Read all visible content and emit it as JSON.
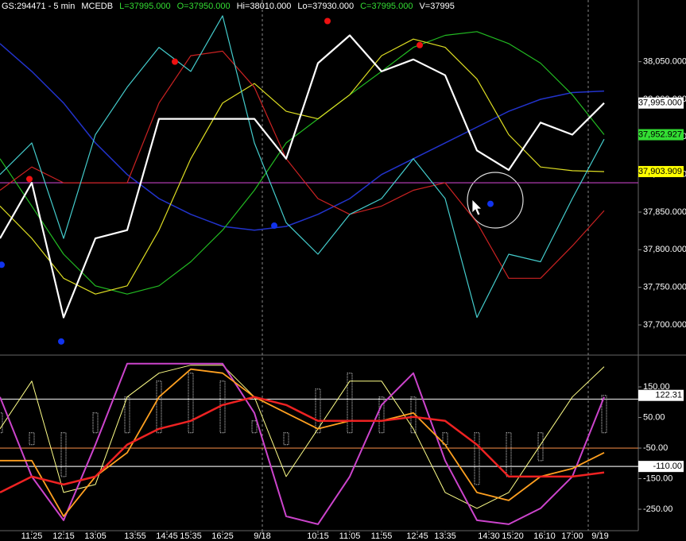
{
  "header": [
    {
      "text": "GS:294471 - 5 min",
      "color": "#ffffff"
    },
    {
      "text": "MCEDB",
      "color": "#ffffff"
    },
    {
      "text": "L=37995.000",
      "color": "#33dd33"
    },
    {
      "text": "O=37950.000",
      "color": "#33dd33"
    },
    {
      "text": "Hi=38010.000",
      "color": "#ffffff"
    },
    {
      "text": "Lo=37930.000",
      "color": "#ffffff"
    },
    {
      "text": "C=37995.000",
      "color": "#33dd33"
    },
    {
      "text": "V=37995",
      "color": "#ffffff"
    }
  ],
  "time_axis": {
    "xlim": [
      0,
      160
    ],
    "x": [
      0,
      8,
      16,
      24,
      32,
      40,
      48,
      56,
      64,
      72,
      80,
      88,
      96,
      104,
      112,
      120,
      128,
      136,
      144,
      152
    ],
    "xticks": [
      {
        "value": 8,
        "label": "11:25"
      },
      {
        "value": 16,
        "label": "12:15"
      },
      {
        "value": 24,
        "label": "13:05"
      },
      {
        "value": 34,
        "label": "13:55"
      },
      {
        "value": 42,
        "label": "14:45"
      },
      {
        "value": 48,
        "label": "15:35"
      },
      {
        "value": 56,
        "label": "16:25"
      },
      {
        "value": 66,
        "label": "9/18"
      },
      {
        "value": 80,
        "label": "10:15"
      },
      {
        "value": 88,
        "label": "11:05"
      },
      {
        "value": 96,
        "label": "11:55"
      },
      {
        "value": 105,
        "label": "12:45"
      },
      {
        "value": 112,
        "label": "13:35"
      },
      {
        "value": 123,
        "label": "14:30"
      },
      {
        "value": 129,
        "label": "15:20"
      },
      {
        "value": 137,
        "label": "16:10"
      },
      {
        "value": 144,
        "label": "17:00"
      },
      {
        "value": 151,
        "label": "9/19"
      }
    ],
    "day_breaks": [
      66,
      148
    ]
  },
  "chart_data": [
    {
      "type": "line",
      "ylim": [
        37662,
        38132
      ],
      "yticks": [
        {
          "value": 37700,
          "label": "37,700.000"
        },
        {
          "value": 37750,
          "label": "37,750.000"
        },
        {
          "value": 37800,
          "label": "37,800.000"
        },
        {
          "value": 37850,
          "label": "37,850.000"
        },
        {
          "value": 37900,
          "label": "37,900.000"
        },
        {
          "value": 37950,
          "label": "37,950.000"
        },
        {
          "value": 38000,
          "label": "38,000.000"
        },
        {
          "value": 38050,
          "label": "38,050.000"
        }
      ],
      "reference_lines": [
        {
          "value": 37889,
          "color": "#c040c0"
        }
      ],
      "series": [
        {
          "style": "line",
          "color": "#2233cc",
          "width": 1.5,
          "values": [
            38074,
            38037,
            37995,
            37942,
            37900,
            37868,
            37847,
            37831,
            37826,
            37831,
            37847,
            37868,
            37900,
            37921,
            37942,
            37963,
            37984,
            38000,
            38009,
            38011
          ]
        },
        {
          "style": "line",
          "color": "#22bb22",
          "width": 1.2,
          "values": [
            37921,
            37858,
            37794,
            37752,
            37741,
            37752,
            37784,
            37826,
            37879,
            37942,
            37974,
            38006,
            38037,
            38069,
            38085,
            38090,
            38074,
            38048,
            38006,
            37952.927
          ],
          "last_label": "37,952.927",
          "tag_color": "#33dd33"
        },
        {
          "style": "line",
          "color": "#dddd22",
          "width": 1.2,
          "values": [
            37858,
            37815,
            37762,
            37741,
            37752,
            37826,
            37921,
            37995,
            38021,
            37984,
            37974,
            38006,
            38058,
            38080,
            38069,
            38027,
            37953,
            37910,
            37905,
            37903.909
          ],
          "last_label": "37,903.909",
          "tag_color": "#ffff00"
        },
        {
          "style": "line",
          "color": "#cc2222",
          "width": 1.2,
          "values": [
            37879,
            37910,
            37889,
            37889,
            37889,
            37995,
            38058,
            38064,
            38016,
            37921,
            37868,
            37847,
            37858,
            37879,
            37889,
            37836,
            37762,
            37762,
            37805,
            37852
          ]
        },
        {
          "style": "line",
          "color": "#44cccc",
          "width": 1.2,
          "values": [
            37900,
            37942,
            37815,
            37953,
            38016,
            38069,
            38037,
            38111,
            37942,
            37836,
            37794,
            37847,
            37868,
            37921,
            37868,
            37710,
            37794,
            37784,
            37868,
            37947
          ]
        },
        {
          "style": "line",
          "color": "#ffffff",
          "width": 2.2,
          "values": [
            37815,
            37889,
            37710,
            37815,
            37826,
            37974,
            37974,
            37974,
            37974,
            37921,
            38048,
            38085,
            38037,
            38053,
            38032,
            37932,
            37906,
            37969,
            37953,
            37995
          ],
          "last_label": "37,995.000",
          "tag_color": "#ffffff"
        },
        {
          "style": "points",
          "color": "#ee1111",
          "x": [
            7.4,
            44,
            82.4,
            105.6
          ],
          "values": [
            37894,
            38050,
            38104,
            38072
          ]
        },
        {
          "style": "points",
          "color": "#1133ee",
          "x": [
            0.4,
            15.4,
            69,
            123.4
          ],
          "values": [
            37780,
            37678,
            37832,
            37861
          ]
        }
      ]
    },
    {
      "type": "line",
      "ylim": [
        -320,
        254
      ],
      "yticks": [
        {
          "value": 150,
          "label": "150.00"
        },
        {
          "value": 50,
          "label": "50.00"
        },
        {
          "value": -50,
          "label": "-50.00"
        },
        {
          "value": -150,
          "label": "-150.00"
        },
        {
          "value": -250,
          "label": "-250.00"
        }
      ],
      "reference_lines": [
        {
          "value": 110,
          "color": "#dddddd"
        },
        {
          "value": -50,
          "color": "#e08040"
        },
        {
          "value": -110,
          "color": "#dddddd",
          "label": "-110.00"
        }
      ],
      "series": [
        {
          "style": "histogram",
          "color": "#d8d8d8",
          "width": 1,
          "values": [
            65,
            -39,
            -143,
            65,
            117,
            169,
            195,
            169,
            39,
            -39,
            143,
            195,
            117,
            117,
            -39,
            -169,
            -143,
            -91,
            0,
            122.31
          ],
          "last_label": "122.31",
          "tag_color": "#ffffff"
        },
        {
          "style": "line",
          "color": "#ffff88",
          "width": 1,
          "values": [
            13,
            169,
            -195,
            -169,
            117,
            195,
            221,
            221,
            117,
            -143,
            13,
            169,
            169,
            13,
            -195,
            -247,
            -195,
            -39,
            117,
            216
          ]
        },
        {
          "style": "line",
          "color": "#cc44cc",
          "width": 2,
          "values": [
            117,
            -143,
            -286,
            -39,
            226,
            226,
            226,
            226,
            65,
            -273,
            -299,
            -143,
            91,
            195,
            -91,
            -286,
            -299,
            -247,
            -143,
            117
          ]
        },
        {
          "style": "line",
          "color": "#ffa020",
          "width": 1.8,
          "values": [
            -91,
            -91,
            -273,
            -143,
            -65,
            117,
            208,
            195,
            117,
            65,
            13,
            39,
            39,
            65,
            -39,
            -195,
            -221,
            -143,
            -117,
            -65
          ]
        },
        {
          "style": "line",
          "color": "#ee2222",
          "width": 2.5,
          "values": [
            -195,
            -143,
            -169,
            -143,
            -39,
            13,
            39,
            91,
            117,
            91,
            39,
            39,
            39,
            52,
            39,
            -39,
            -143,
            -143,
            -143,
            -130
          ]
        }
      ]
    }
  ]
}
